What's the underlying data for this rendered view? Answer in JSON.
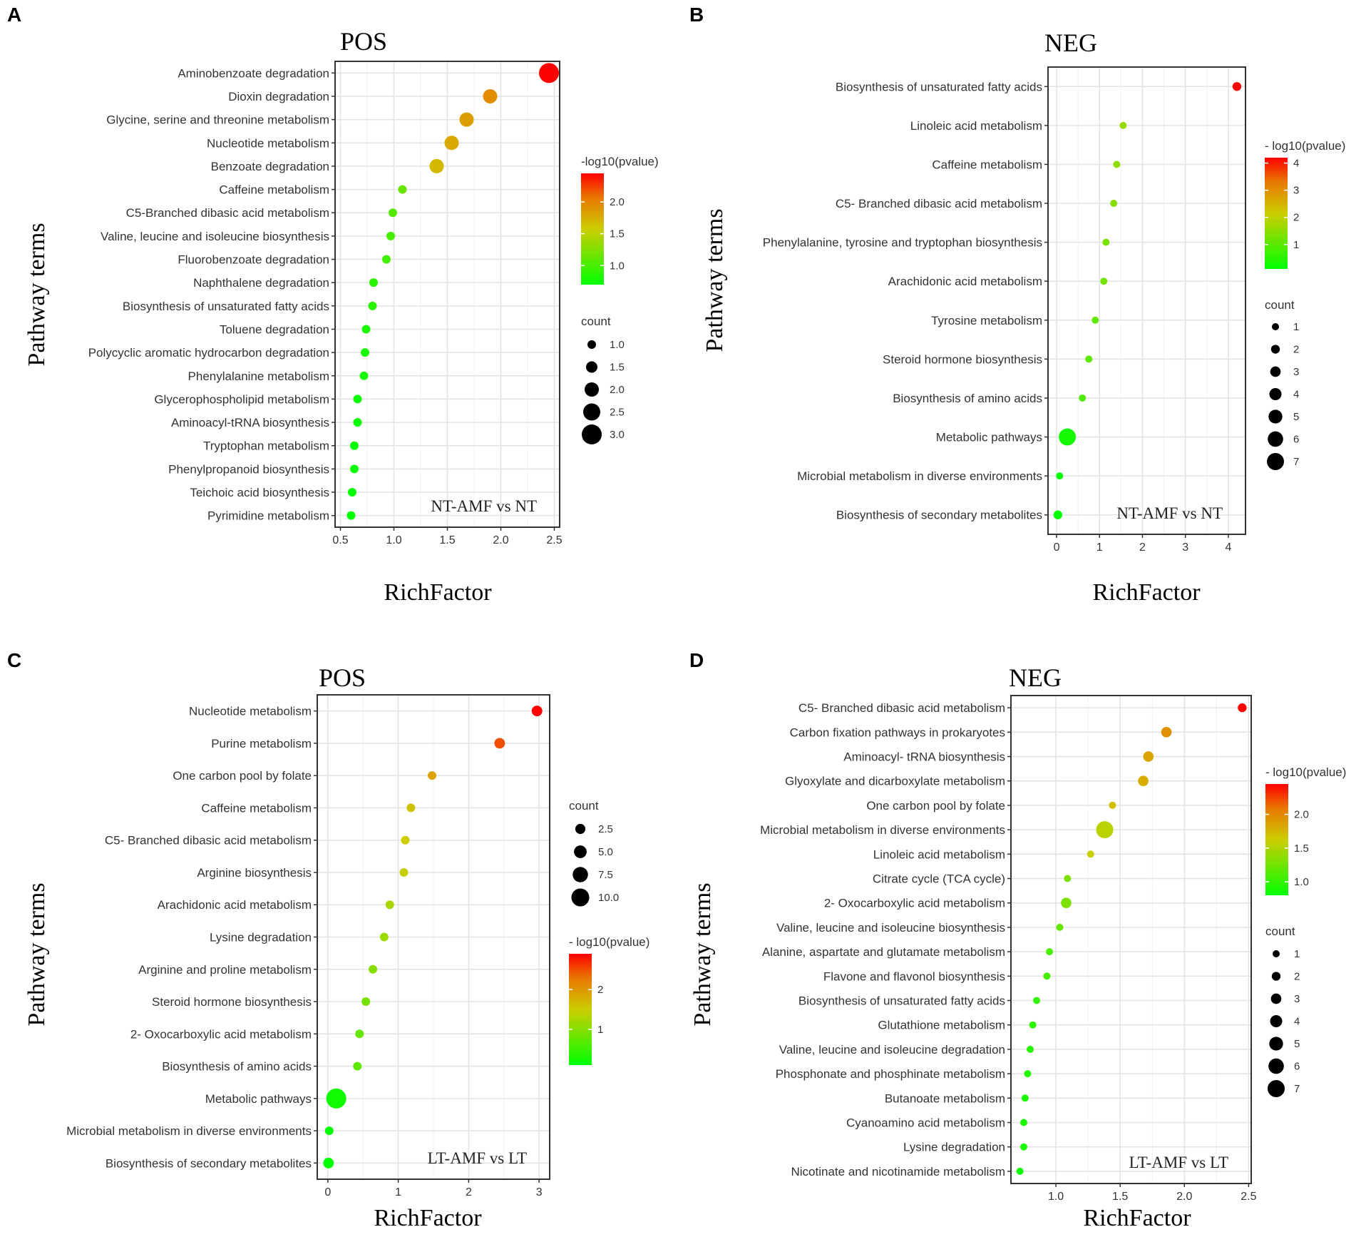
{
  "chart_data": [
    {
      "panel_letter": "A",
      "type": "scatter",
      "title": "POS",
      "annotation": "NT-AMF vs NT",
      "xlabel": "RichFactor",
      "ylabel": "Pathway terms",
      "xlim": [
        0.45,
        2.55
      ],
      "xticks": [
        0.5,
        1.0,
        1.5,
        2.0,
        2.5
      ],
      "xtick_labels": [
        "0.5",
        "1.0",
        "1.5",
        "2.0",
        "2.5"
      ],
      "categories": [
        "Aminobenzoate degradation",
        "Dioxin degradation",
        "Glycine, serine and threonine metabolism",
        "Nucleotide metabolism",
        "Benzoate degradation",
        "Caffeine metabolism",
        "C5-Branched dibasic acid metabolism",
        "Valine, leucine and isoleucine biosynthesis",
        "Fluorobenzoate degradation",
        "Naphthalene degradation",
        "Biosynthesis of unsaturated fatty acids",
        "Toluene degradation",
        "Polycyclic aromatic hydrocarbon degradation",
        "Phenylalanine metabolism",
        "Glycerophospholipid metabolism",
        "Aminoacyl-tRNA biosynthesis",
        "Tryptophan metabolism",
        "Phenylpropanoid biosynthesis",
        "Teichoic acid biosynthesis",
        "Pyrimidine metabolism"
      ],
      "rich_factor": [
        2.45,
        1.9,
        1.68,
        1.54,
        1.4,
        1.08,
        0.99,
        0.97,
        0.93,
        0.81,
        0.8,
        0.74,
        0.73,
        0.72,
        0.66,
        0.66,
        0.63,
        0.63,
        0.61,
        0.6
      ],
      "count": [
        3,
        2,
        2,
        2,
        2,
        1,
        1,
        1,
        1,
        1,
        1,
        1,
        1,
        1,
        1,
        1,
        1,
        1,
        1,
        1
      ],
      "neg_log10_pvalue": [
        2.45,
        1.95,
        1.85,
        1.78,
        1.7,
        1.15,
        1.05,
        1.0,
        0.98,
        0.88,
        0.86,
        0.82,
        0.81,
        0.8,
        0.75,
        0.75,
        0.73,
        0.72,
        0.7,
        0.7
      ],
      "color_scale": {
        "title": "-log10(pvalue)",
        "min": 0.7,
        "max": 2.45,
        "ticks": [
          1.0,
          1.5,
          2.0
        ],
        "tick_labels": [
          "1.0",
          "1.5",
          "2.0"
        ]
      },
      "size_legend": {
        "title": "count",
        "values": [
          1.0,
          1.5,
          2.0,
          2.5,
          3.0
        ],
        "labels": [
          "1.0",
          "1.5",
          "2.0",
          "2.5",
          "3.0"
        ],
        "min": 1,
        "max": 3
      }
    },
    {
      "panel_letter": "B",
      "type": "scatter",
      "title": "NEG",
      "annotation": "NT-AMF vs NT",
      "xlabel": "RichFactor",
      "ylabel": "Pathway terms",
      "xlim": [
        -0.2,
        4.4
      ],
      "xticks": [
        0,
        1,
        2,
        3,
        4
      ],
      "xtick_labels": [
        "0",
        "1",
        "2",
        "3",
        "4"
      ],
      "categories": [
        "Biosynthesis of unsaturated fatty acids",
        "Linoleic acid metabolism",
        "Caffeine metabolism",
        "C5- Branched dibasic acid metabolism",
        "Phenylalanine, tyrosine and tryptophan biosynthesis",
        "Arachidonic acid metabolism",
        "Tyrosine metabolism",
        "Steroid hormone biosynthesis",
        "Biosynthesis of amino acids",
        "Metabolic pathways",
        "Microbial metabolism in diverse environments",
        "Biosynthesis of secondary metabolites"
      ],
      "rich_factor": [
        4.2,
        1.55,
        1.4,
        1.33,
        1.15,
        1.1,
        0.9,
        0.75,
        0.6,
        0.25,
        0.07,
        0.03
      ],
      "count": [
        2,
        1,
        1,
        1,
        1,
        1,
        1,
        1,
        1,
        7,
        1,
        2
      ],
      "neg_log10_pvalue": [
        4.2,
        1.6,
        1.5,
        1.45,
        1.3,
        1.25,
        1.1,
        1.0,
        0.9,
        0.3,
        0.1,
        0.1
      ],
      "color_scale": {
        "title": "- log10(pvalue)",
        "min": 0.1,
        "max": 4.2,
        "ticks": [
          1,
          2,
          3,
          4
        ],
        "tick_labels": [
          "1",
          "2",
          "3",
          "4"
        ]
      },
      "size_legend": {
        "title": "count",
        "values": [
          1,
          2,
          3,
          4,
          5,
          6,
          7
        ],
        "labels": [
          "1",
          "2",
          "3",
          "4",
          "5",
          "6",
          "7"
        ],
        "min": 1,
        "max": 7
      }
    },
    {
      "panel_letter": "C",
      "type": "scatter",
      "title": "POS",
      "annotation": "LT-AMF vs LT",
      "xlabel": "RichFactor",
      "ylabel": "Pathway terms",
      "xlim": [
        -0.15,
        3.15
      ],
      "xticks": [
        0,
        1,
        2,
        3
      ],
      "xtick_labels": [
        "0",
        "1",
        "2",
        "3"
      ],
      "categories": [
        "Nucleotide metabolism",
        "Purine metabolism",
        "One carbon pool by folate",
        "Caffeine metabolism",
        "C5- Branched dibasic acid metabolism",
        "Arginine biosynthesis",
        "Arachidonic acid metabolism",
        "Lysine degradation",
        "Arginine and proline metabolism",
        "Steroid hormone biosynthesis",
        "2- Oxocarboxylic acid metabolism",
        "Biosynthesis of amino acids",
        "Metabolic pathways",
        "Microbial metabolism in diverse environments",
        "Biosynthesis of secondary metabolites"
      ],
      "rich_factor": [
        2.97,
        2.44,
        1.48,
        1.18,
        1.1,
        1.08,
        0.88,
        0.8,
        0.64,
        0.54,
        0.45,
        0.42,
        0.12,
        0.02,
        0.01
      ],
      "count": [
        3,
        3,
        1,
        1,
        1,
        1,
        1,
        1,
        1,
        1,
        1,
        1,
        12,
        1,
        3
      ],
      "neg_log10_pvalue": [
        2.9,
        2.5,
        1.9,
        1.6,
        1.5,
        1.45,
        1.25,
        1.15,
        1.0,
        0.9,
        0.8,
        0.75,
        0.2,
        0.1,
        0.1
      ],
      "color_scale": {
        "title": "- log10(pvalue)",
        "min": 0.1,
        "max": 2.9,
        "ticks": [
          1,
          2
        ],
        "tick_labels": [
          "1",
          "2"
        ]
      },
      "size_legend": {
        "title": "count",
        "values": [
          2.5,
          5.0,
          7.5,
          10.0
        ],
        "labels": [
          "2.5",
          "5.0",
          "7.5",
          "10.0"
        ],
        "min": 1,
        "max": 12
      }
    },
    {
      "panel_letter": "D",
      "type": "scatter",
      "title": "NEG",
      "annotation": "LT-AMF vs LT",
      "xlabel": "RichFactor",
      "ylabel": "Pathway terms",
      "xlim": [
        0.65,
        2.52
      ],
      "xticks": [
        1.0,
        1.5,
        2.0,
        2.5
      ],
      "xtick_labels": [
        "1.0",
        "1.5",
        "2.0",
        "2.5"
      ],
      "categories": [
        "C5- Branched dibasic acid metabolism",
        "Carbon fixation pathways in prokaryotes",
        "Aminoacyl- tRNA biosynthesis",
        "Glyoxylate and dicarboxylate metabolism",
        "One carbon pool by folate",
        "Microbial metabolism in diverse environments",
        "Linoleic acid metabolism",
        "Citrate cycle (TCA cycle)",
        "2- Oxocarboxylic acid metabolism",
        "Valine, leucine and isoleucine biosynthesis",
        "Alanine, aspartate and glutamate metabolism",
        "Flavone and flavonol biosynthesis",
        "Biosynthesis of unsaturated fatty acids",
        "Glutathione metabolism",
        "Valine, leucine and isoleucine degradation",
        "Phosphonate and phosphinate metabolism",
        "Butanoate metabolism",
        "Cyanoamino acid metabolism",
        "Lysine degradation",
        "Nicotinate and nicotinamide metabolism"
      ],
      "rich_factor": [
        2.45,
        1.86,
        1.72,
        1.68,
        1.44,
        1.38,
        1.27,
        1.09,
        1.08,
        1.03,
        0.95,
        0.93,
        0.85,
        0.82,
        0.8,
        0.78,
        0.76,
        0.75,
        0.75,
        0.72
      ],
      "count": [
        2,
        3,
        3,
        3,
        1,
        7,
        1,
        1,
        3,
        1,
        1,
        1,
        1,
        1,
        1,
        1,
        1,
        1,
        1,
        1
      ],
      "neg_log10_pvalue": [
        2.45,
        1.95,
        1.85,
        1.8,
        1.7,
        1.55,
        1.6,
        1.3,
        1.3,
        1.2,
        1.1,
        1.08,
        1.0,
        0.98,
        0.95,
        0.93,
        0.9,
        0.9,
        0.9,
        0.85
      ],
      "color_scale": {
        "title": "- log10(pvalue)",
        "min": 0.8,
        "max": 2.45,
        "ticks": [
          1.0,
          1.5,
          2.0
        ],
        "tick_labels": [
          "1.0",
          "1.5",
          "2.0"
        ]
      },
      "size_legend": {
        "title": "count",
        "values": [
          1,
          2,
          3,
          4,
          5,
          6,
          7
        ],
        "labels": [
          "1",
          "2",
          "3",
          "4",
          "5",
          "6",
          "7"
        ],
        "min": 1,
        "max": 7
      }
    }
  ]
}
